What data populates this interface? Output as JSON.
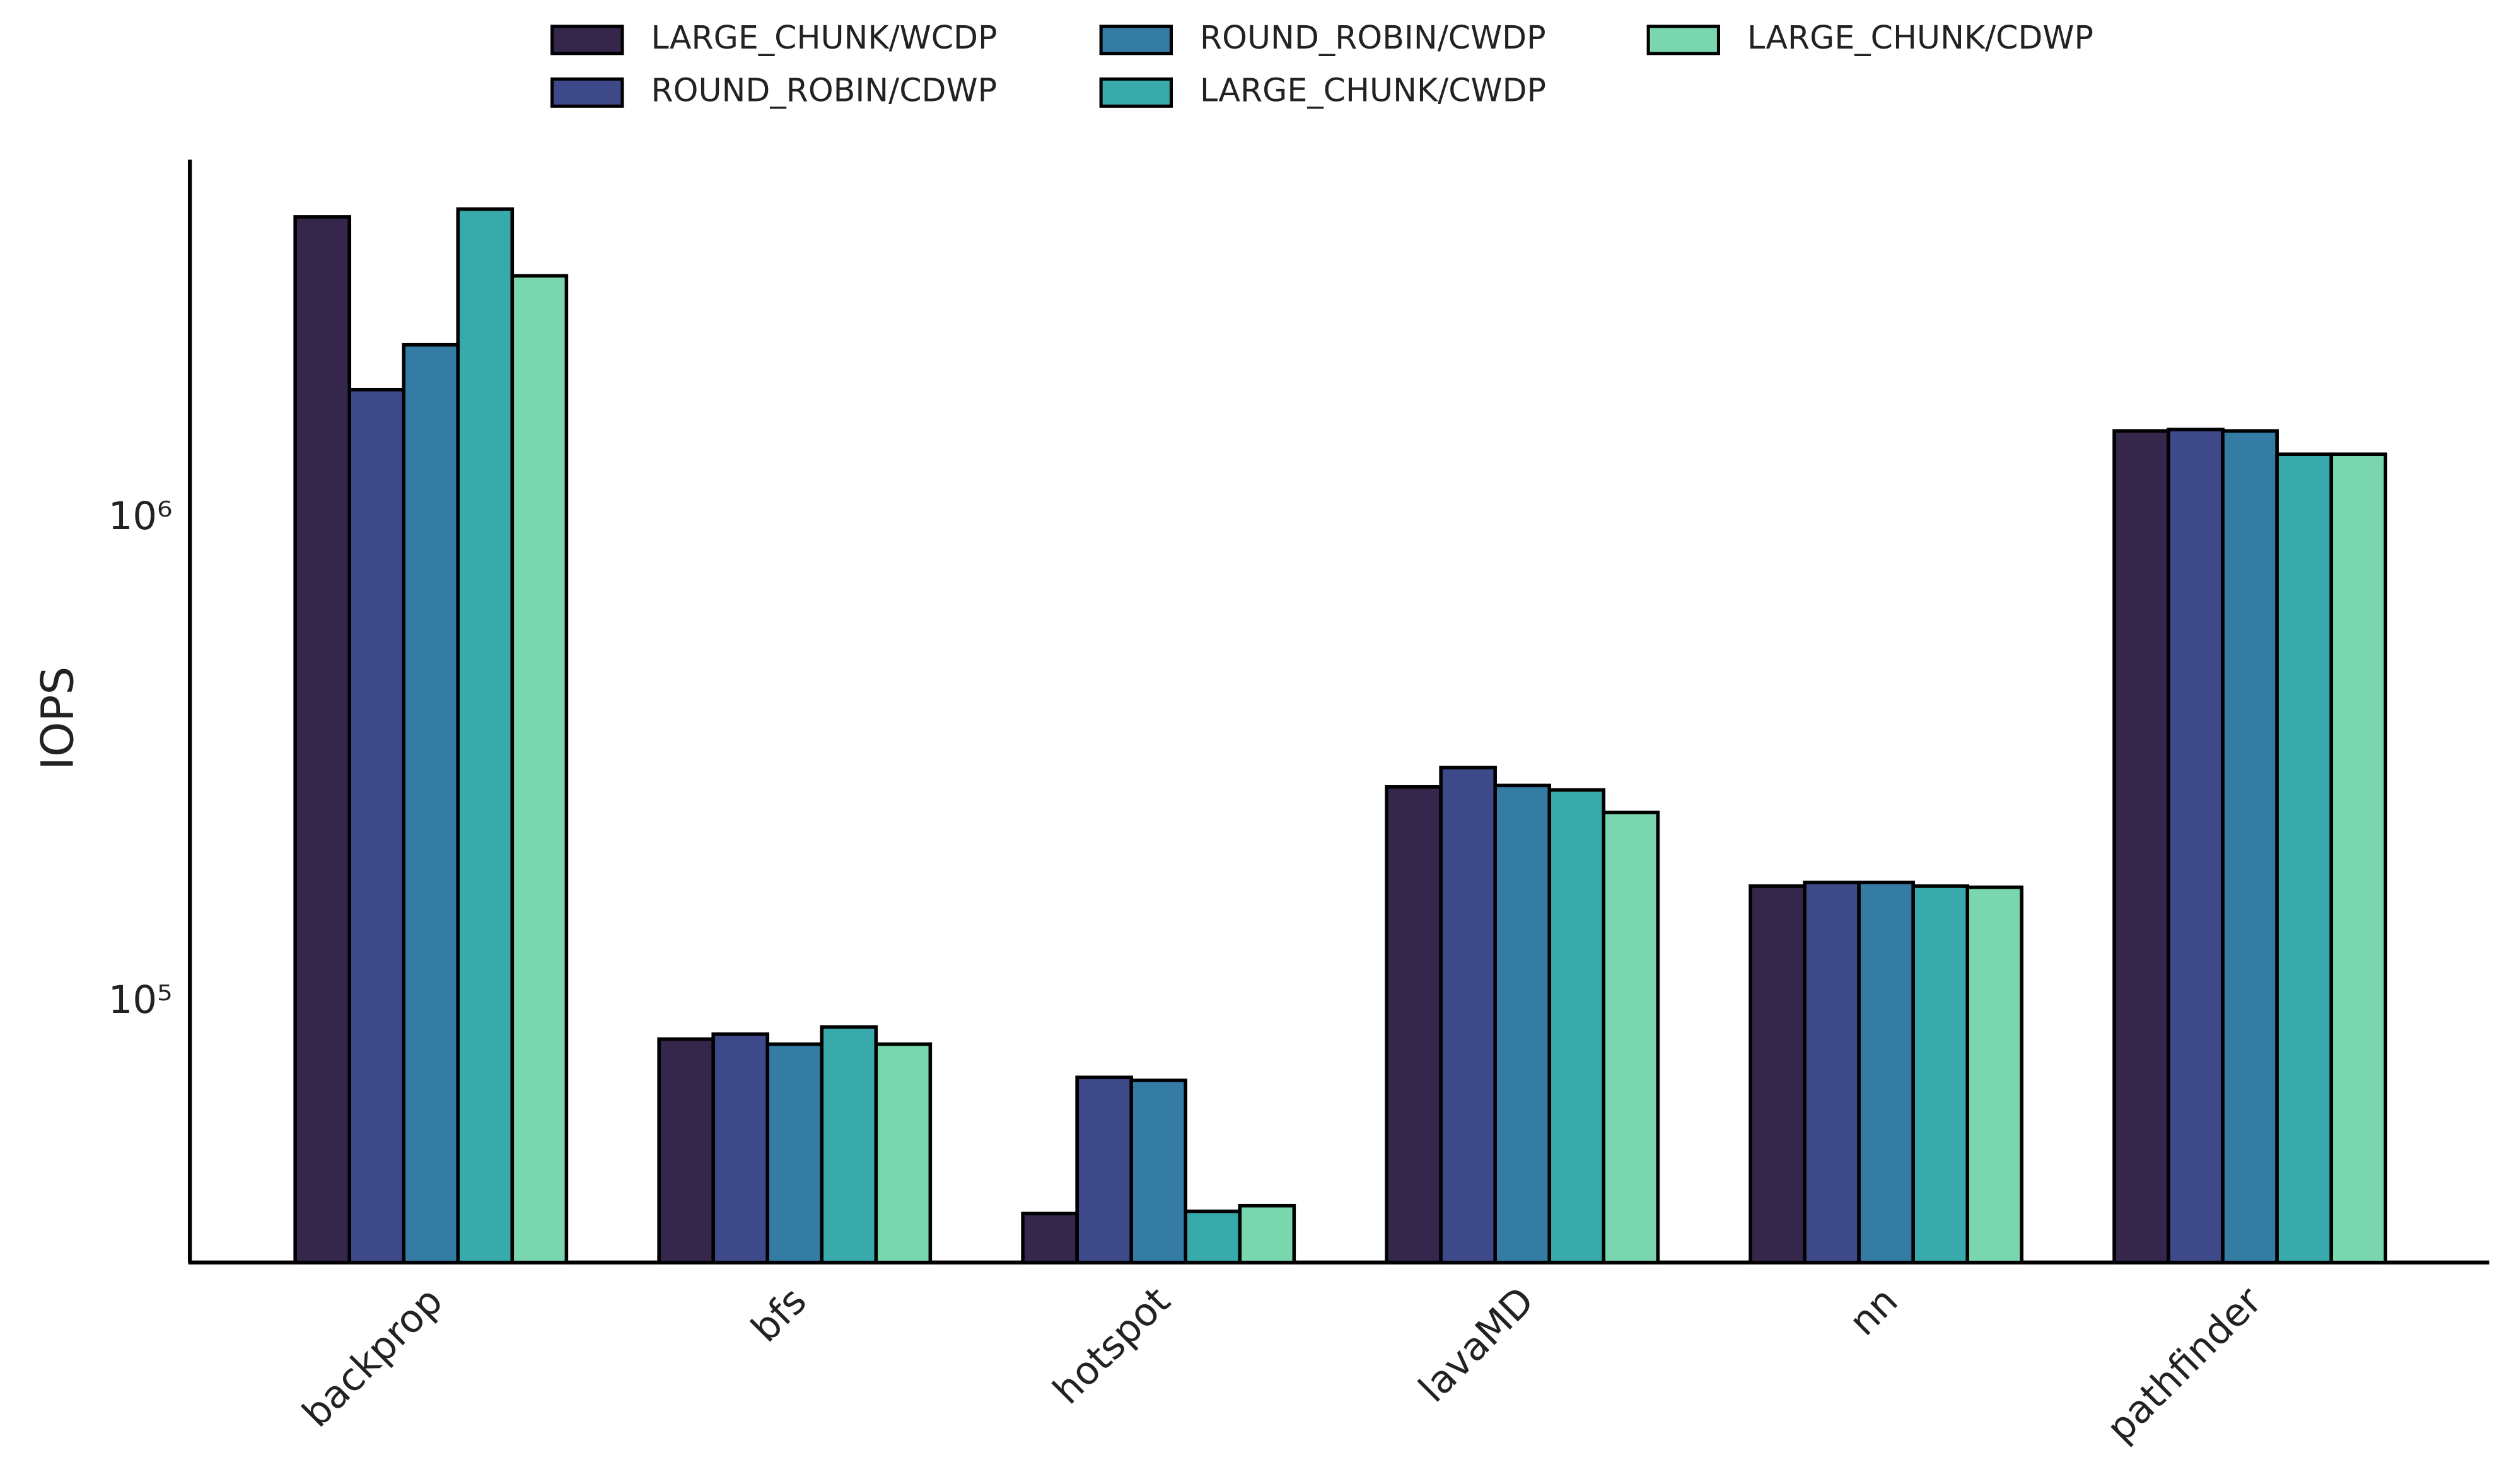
{
  "chart_data": {
    "type": "bar",
    "y_label": "IOPS",
    "log_scale": true,
    "categories": [
      "backprop",
      "bfs",
      "hotspot",
      "lavaMD",
      "nn",
      "pathfinder"
    ],
    "series": [
      {
        "name": "LARGE_CHUNK/WCDP",
        "color": "#35264c",
        "values": [
          4210000,
          84000,
          36600,
          279000,
          174000,
          1520000
        ]
      },
      {
        "name": "ROUND_ROBIN/CDWP",
        "color": "#3e4989",
        "values": [
          1850000,
          86000,
          70000,
          306000,
          177000,
          1530000
        ]
      },
      {
        "name": "ROUND_ROBIN/CWDP",
        "color": "#357ca5",
        "values": [
          2290000,
          82000,
          69000,
          281000,
          177000,
          1520000
        ]
      },
      {
        "name": "LARGE_CHUNK/CWDP",
        "color": "#38aaac",
        "values": [
          4370000,
          89000,
          37000,
          275000,
          174000,
          1360000
        ]
      },
      {
        "name": "LARGE_CHUNK/CDWP",
        "color": "#79d6ae",
        "values": [
          3180000,
          82000,
          38000,
          247000,
          173000,
          1360000
        ]
      }
    ],
    "ylim": [
      29000,
      5530000
    ],
    "yticks": [
      {
        "value": 100000,
        "label": "10⁵"
      },
      {
        "value": 1000000,
        "label": "10⁶"
      }
    ],
    "legend": "top"
  }
}
